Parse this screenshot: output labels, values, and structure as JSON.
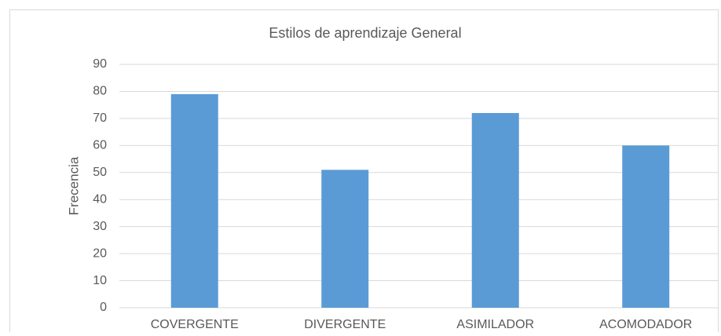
{
  "chart_data": {
    "type": "bar",
    "title": "Estilos de aprendizaje General",
    "y_label": "Frecencia",
    "categories": [
      "COVERGENTE",
      "DIVERGENTE",
      "ASIMILADOR",
      "ACOMODADOR"
    ],
    "values": [
      79,
      51,
      72,
      60
    ],
    "color": "#5b9bd5",
    "ylim": [
      0,
      90
    ],
    "yticks": [
      0,
      10,
      20,
      30,
      40,
      50,
      60,
      70,
      80,
      90
    ],
    "grid": true
  }
}
